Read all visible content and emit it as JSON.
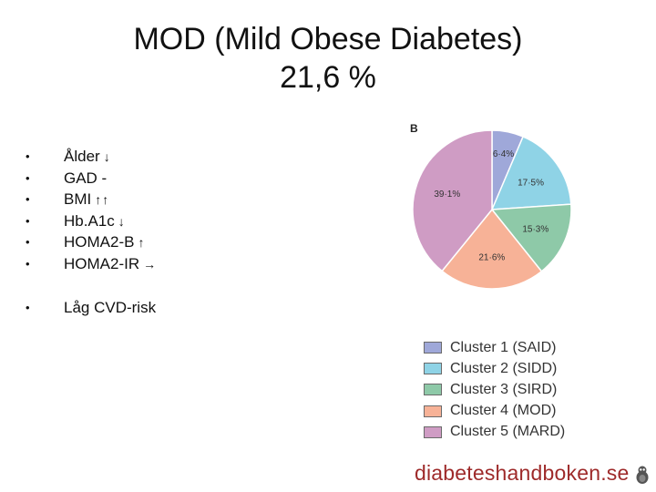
{
  "slide": {
    "title_line1": "MOD (Mild Obese Diabetes)",
    "title_line2": "21,6 %"
  },
  "bullets": [
    {
      "label": "Ålder",
      "arrows": [
        "↓"
      ]
    },
    {
      "label": "GAD  -",
      "arrows": []
    },
    {
      "label": "BMI",
      "arrows": [
        "↑",
        "↑"
      ]
    },
    {
      "label": "Hb.A1c",
      "arrows": [
        "↓"
      ]
    },
    {
      "label": "HOMA2-B",
      "arrows": [
        "↑"
      ]
    },
    {
      "label": "HOMA2-IR",
      "arrows": [
        "→"
      ]
    }
  ],
  "bullets2": [
    {
      "label": "Låg CVD-risk"
    }
  ],
  "bullet_marker": "•",
  "footer": {
    "brand": "diabeteshandboken.se"
  },
  "chart_data": {
    "type": "pie",
    "panel_label": "B",
    "start": "12 o'clock, clockwise",
    "slices": [
      {
        "name": "Cluster 1 (SAID)",
        "value": 6.4,
        "label": "6·4%",
        "color": "#9fa8d9"
      },
      {
        "name": "Cluster 2 (SIDD)",
        "value": 17.5,
        "label": "17·5%",
        "color": "#8fd3e6"
      },
      {
        "name": "Cluster 3 (SIRD)",
        "value": 15.3,
        "label": "15·3%",
        "color": "#8ec9a8"
      },
      {
        "name": "Cluster 4 (MOD)",
        "value": 21.6,
        "label": "21·6%",
        "color": "#f7b297"
      },
      {
        "name": "Cluster 5 (MARD)",
        "value": 39.1,
        "label": "39·1%",
        "color": "#cf9cc4"
      }
    ],
    "legend": [
      {
        "label": "Cluster 1 (SAID)",
        "color": "#9fa8d9"
      },
      {
        "label": "Cluster 2 (SIDD)",
        "color": "#8fd3e6"
      },
      {
        "label": "Cluster 3 (SIRD)",
        "color": "#8ec9a8"
      },
      {
        "label": "Cluster 4 (MOD)",
        "color": "#f7b297"
      },
      {
        "label": "Cluster 5 (MARD)",
        "color": "#cf9cc4"
      }
    ]
  }
}
